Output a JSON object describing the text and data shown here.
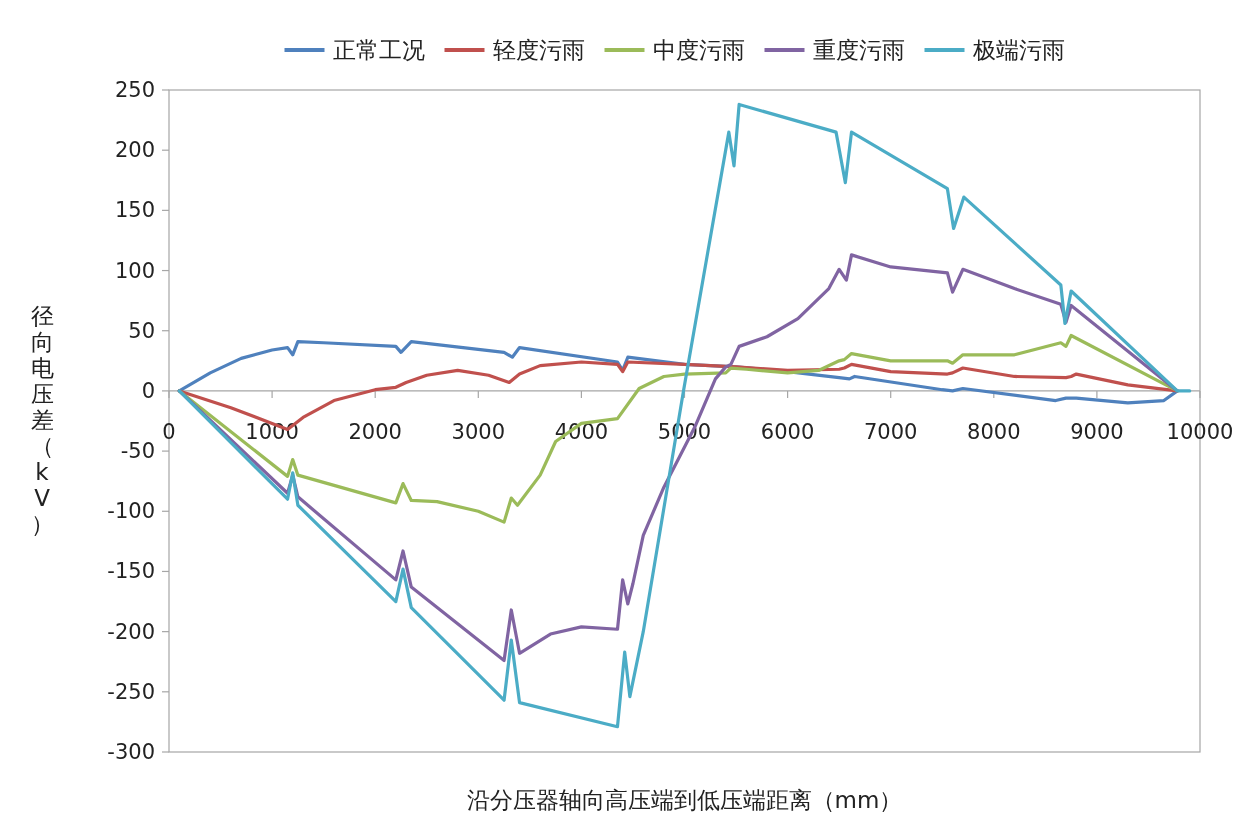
{
  "chart_data": {
    "type": "line",
    "xlabel": "沿分压器轴向高压端到低压端距离（mm）",
    "ylabel": "径向电压差（kV）",
    "xlim": [
      0,
      10000
    ],
    "xticks": [
      0,
      1000,
      2000,
      3000,
      4000,
      5000,
      6000,
      7000,
      8000,
      9000,
      10000
    ],
    "ylim": [
      -300,
      250
    ],
    "yticks": [
      -300,
      -250,
      -200,
      -150,
      -100,
      -50,
      0,
      50,
      100,
      150,
      200,
      250
    ],
    "legend": "top",
    "grid": false,
    "series": [
      {
        "name": "正常工况",
        "color": "#4f81bd",
        "x": [
          100,
          400,
          700,
          1000,
          1150,
          1200,
          1250,
          1500,
          2200,
          2250,
          2350,
          3250,
          3330,
          3400,
          4350,
          4400,
          4450,
          5000,
          5500,
          6000,
          6500,
          6600,
          6650,
          7500,
          7600,
          7700,
          8600,
          8700,
          8800,
          9300,
          9650,
          9780
        ],
        "values": [
          0,
          15,
          27,
          34,
          36,
          30,
          41,
          40,
          37,
          32,
          41,
          32,
          28,
          36,
          24,
          17,
          28,
          22,
          20,
          16,
          11,
          10,
          12,
          1,
          0,
          2,
          -8,
          -6,
          -6,
          -10,
          -8,
          0
        ]
      },
      {
        "name": "轻度污雨",
        "color": "#c0504d",
        "x": [
          100,
          600,
          1000,
          1150,
          1300,
          1600,
          2000,
          2200,
          2300,
          2500,
          2800,
          3100,
          3300,
          3400,
          3600,
          4000,
          4350,
          4400,
          4450,
          5000,
          5500,
          6000,
          6500,
          6550,
          6620,
          7000,
          7550,
          7600,
          7700,
          8200,
          8700,
          8750,
          8800,
          9300,
          9780
        ],
        "values": [
          0,
          -14,
          -27,
          -32,
          -22,
          -8,
          1,
          3,
          7,
          13,
          17,
          13,
          7,
          14,
          21,
          24,
          22,
          16,
          24,
          22,
          20,
          17,
          18,
          19,
          22,
          16,
          14,
          15,
          19,
          12,
          11,
          12,
          14,
          5,
          0
        ]
      },
      {
        "name": "中度污雨",
        "color": "#9bbb59",
        "x": [
          100,
          1150,
          1200,
          1250,
          2200,
          2270,
          2350,
          2600,
          3000,
          3250,
          3320,
          3380,
          3600,
          3750,
          4000,
          4350,
          4560,
          4800,
          5000,
          5400,
          5450,
          5600,
          6000,
          6300,
          6500,
          6550,
          6620,
          7000,
          7550,
          7600,
          7700,
          8200,
          8650,
          8700,
          8750,
          9780
        ],
        "values": [
          0,
          -71,
          -57,
          -70,
          -93,
          -77,
          -91,
          -92,
          -100,
          -109,
          -89,
          -95,
          -70,
          -42,
          -27,
          -23,
          2,
          12,
          14,
          15,
          19,
          18,
          15,
          17,
          25,
          26,
          31,
          25,
          25,
          23,
          30,
          30,
          40,
          37,
          46,
          0
        ]
      },
      {
        "name": "重度污雨",
        "color": "#8064a2",
        "x": [
          100,
          1150,
          1200,
          1250,
          2200,
          2270,
          2350,
          3250,
          3320,
          3400,
          3700,
          4000,
          4350,
          4400,
          4450,
          4500,
          4600,
          4800,
          5100,
          5300,
          5400,
          5450,
          5530,
          5800,
          6100,
          6400,
          6500,
          6570,
          6620,
          7000,
          7550,
          7600,
          7700,
          8200,
          8650,
          8700,
          8750,
          9780
        ],
        "values": [
          0,
          -85,
          -70,
          -88,
          -157,
          -133,
          -163,
          -224,
          -182,
          -218,
          -202,
          -196,
          -198,
          -157,
          -177,
          -160,
          -120,
          -80,
          -30,
          10,
          20,
          22,
          37,
          45,
          60,
          85,
          101,
          92,
          113,
          103,
          98,
          82,
          101,
          85,
          72,
          57,
          71,
          0
        ]
      },
      {
        "name": "极端污雨",
        "color": "#4bacc6",
        "x": [
          100,
          1150,
          1200,
          1250,
          2200,
          2270,
          2350,
          3250,
          3320,
          3400,
          4350,
          4420,
          4470,
          4600,
          4990,
          5430,
          5480,
          5530,
          6470,
          6560,
          6620,
          7550,
          7610,
          7710,
          8650,
          8690,
          8750,
          9780,
          9900
        ],
        "values": [
          0,
          -90,
          -68,
          -95,
          -175,
          -148,
          -180,
          -257,
          -207,
          -259,
          -279,
          -217,
          -254,
          -200,
          0,
          215,
          187,
          238,
          215,
          173,
          215,
          168,
          135,
          161,
          88,
          56,
          83,
          0,
          0
        ]
      }
    ]
  }
}
